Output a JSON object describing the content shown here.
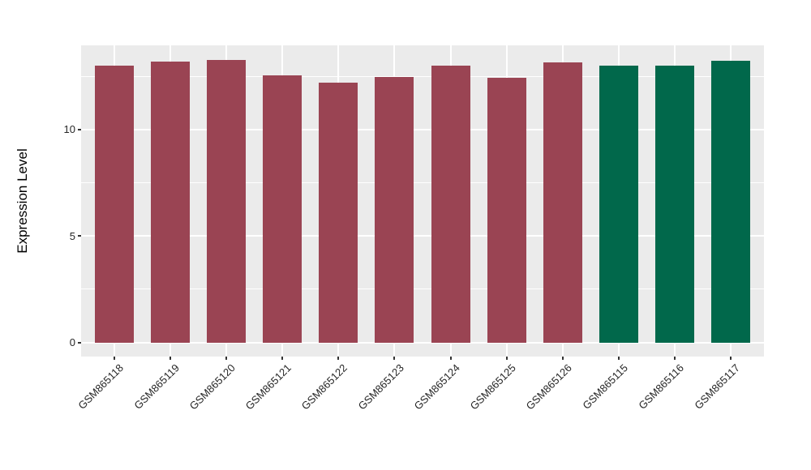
{
  "chart_data": {
    "type": "bar",
    "title": "",
    "ylabel": "Expression Level",
    "xlabel": "",
    "categories": [
      "GSM865118",
      "GSM865119",
      "GSM865120",
      "GSM865121",
      "GSM865122",
      "GSM865123",
      "GSM865124",
      "GSM865125",
      "GSM865126",
      "GSM865115",
      "GSM865116",
      "GSM865117"
    ],
    "values": [
      13.02,
      13.2,
      13.28,
      12.53,
      12.2,
      12.48,
      13.02,
      12.43,
      13.14,
      13.0,
      13.01,
      13.25
    ],
    "bar_groups": [
      "group-1",
      "group-1",
      "group-1",
      "group-1",
      "group-1",
      "group-1",
      "group-1",
      "group-1",
      "group-1",
      "group-2",
      "group-2",
      "group-2"
    ],
    "group_colors": {
      "group-1": "#9A4453",
      "group-2": "#01684B"
    },
    "y_tick_labels": [
      "0",
      "5",
      "10"
    ],
    "y_ticks": [
      0,
      5,
      10
    ],
    "y_minor_ticks": [
      2.5,
      7.5,
      12.5
    ],
    "ylim": [
      0,
      13.93
    ],
    "grid": "on",
    "legend_position": "none",
    "x_label_angle_deg": 45
  },
  "style": {
    "panel_background": "#EBEBEB",
    "gridline_color": "#FFFFFF",
    "tick_mark_color": "#333333",
    "axis_text_color": "#262626",
    "axis_title_color": "#000000",
    "page_background": "#FFFFFF"
  }
}
